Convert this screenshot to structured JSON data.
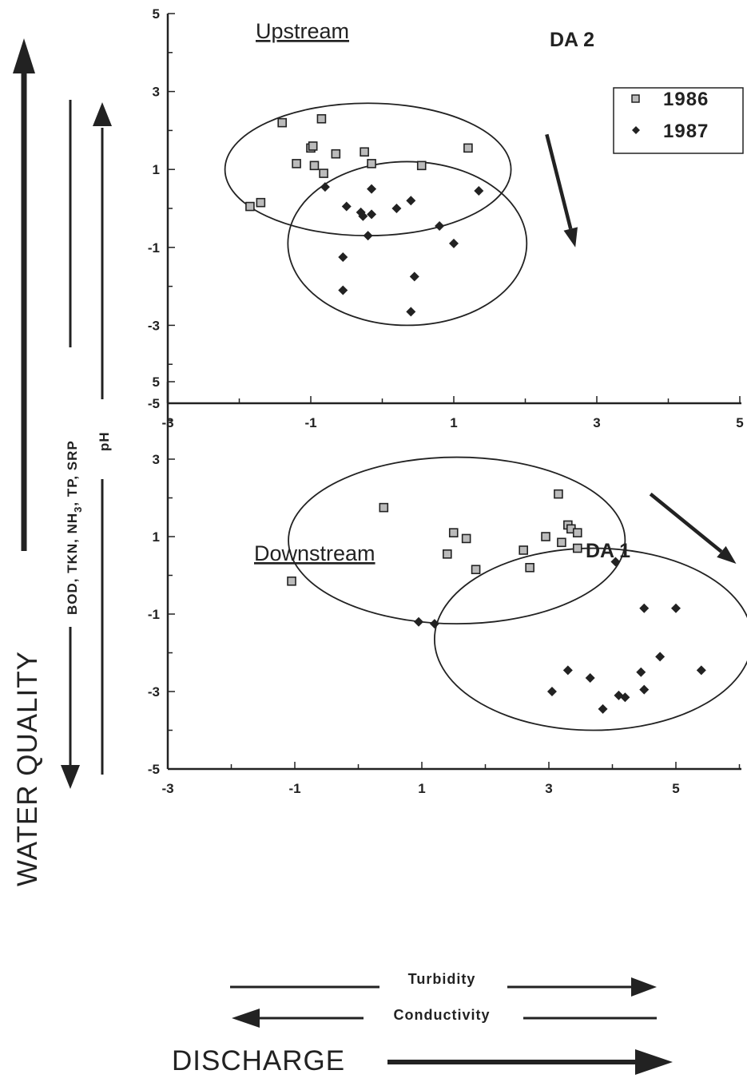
{
  "colors": {
    "ink": "#222222",
    "marker_fill": "#bbbbbb",
    "background": "#ffffff"
  },
  "labels": {
    "water_quality": "WATER QUALITY",
    "down_params": "BOD, TKN, NH",
    "down_params_sub": "3",
    "down_params_tail": ", TP, SRP",
    "up_param": "pH",
    "discharge": "DISCHARGE",
    "turbidity": "Turbidity",
    "conductivity": "Conductivity"
  },
  "legend": {
    "items": [
      {
        "label": "1986",
        "marker": "square"
      },
      {
        "label": "1987",
        "marker": "diamond"
      }
    ]
  },
  "chart_data": [
    {
      "type": "scatter",
      "title": "Upstream",
      "annotation": "DA 2",
      "xlim": [
        -3,
        5
      ],
      "ylim": [
        -5,
        5
      ],
      "xticks": [
        -3,
        -1,
        1,
        3,
        5
      ],
      "yticks": [
        -5,
        -3,
        -1,
        1,
        3,
        5
      ],
      "legend": {
        "position": "top-right"
      },
      "series": [
        {
          "name": "1986",
          "marker": "square",
          "points": [
            [
              -1.85,
              0.05
            ],
            [
              -1.7,
              0.15
            ],
            [
              -1.4,
              2.2
            ],
            [
              -1.2,
              1.15
            ],
            [
              -1.0,
              1.55
            ],
            [
              -0.97,
              1.6
            ],
            [
              -0.95,
              1.1
            ],
            [
              -0.85,
              2.3
            ],
            [
              -0.82,
              0.9
            ],
            [
              -0.65,
              1.4
            ],
            [
              -0.25,
              1.45
            ],
            [
              -0.15,
              1.15
            ],
            [
              0.55,
              1.1
            ],
            [
              1.2,
              1.55
            ]
          ]
        },
        {
          "name": "1987",
          "marker": "diamond",
          "points": [
            [
              -0.8,
              0.55
            ],
            [
              -0.5,
              0.05
            ],
            [
              -0.3,
              -0.1
            ],
            [
              -0.27,
              -0.2
            ],
            [
              -0.2,
              -0.7
            ],
            [
              -0.15,
              -0.15
            ],
            [
              -0.15,
              0.5
            ],
            [
              0.2,
              0.0
            ],
            [
              0.4,
              0.2
            ],
            [
              0.8,
              -0.45
            ],
            [
              1.0,
              -0.9
            ],
            [
              1.35,
              0.45
            ],
            [
              -0.55,
              -1.25
            ],
            [
              -0.55,
              -2.1
            ],
            [
              0.45,
              -1.75
            ],
            [
              0.4,
              -2.65
            ]
          ]
        }
      ],
      "ellipses": [
        {
          "series": "1986",
          "center": [
            -0.2,
            1.0
          ],
          "radii": [
            2.0,
            1.7
          ]
        },
        {
          "series": "1987",
          "center": [
            0.35,
            -0.9
          ],
          "radii": [
            1.67,
            2.1
          ]
        }
      ],
      "arrow": {
        "from": [
          2.3,
          1.9
        ],
        "to": [
          2.7,
          -1.0
        ]
      }
    },
    {
      "type": "scatter",
      "title": "Downstream",
      "annotation": "DA 1",
      "xlim": [
        -3,
        6
      ],
      "ylim": [
        -5,
        5
      ],
      "xticks": [
        -3,
        -1,
        1,
        3,
        5
      ],
      "yticks": [
        -5,
        -3,
        -1,
        1,
        3,
        5
      ],
      "series": [
        {
          "name": "1986",
          "marker": "square",
          "points": [
            [
              -1.05,
              -0.15
            ],
            [
              0.4,
              1.75
            ],
            [
              1.4,
              0.55
            ],
            [
              1.5,
              1.1
            ],
            [
              1.7,
              0.95
            ],
            [
              1.85,
              0.15
            ],
            [
              2.6,
              0.65
            ],
            [
              2.7,
              0.2
            ],
            [
              2.95,
              1.0
            ],
            [
              3.15,
              2.1
            ],
            [
              3.2,
              0.85
            ],
            [
              3.3,
              1.3
            ],
            [
              3.35,
              1.2
            ],
            [
              3.45,
              1.1
            ],
            [
              3.45,
              0.7
            ]
          ]
        },
        {
          "name": "1987",
          "marker": "diamond",
          "points": [
            [
              0.95,
              -1.2
            ],
            [
              1.2,
              -1.25
            ],
            [
              4.05,
              0.35
            ],
            [
              4.5,
              -0.85
            ],
            [
              5.0,
              -0.85
            ],
            [
              4.75,
              -2.1
            ],
            [
              5.4,
              -2.45
            ],
            [
              4.45,
              -2.5
            ],
            [
              4.5,
              -2.95
            ],
            [
              3.3,
              -2.45
            ],
            [
              3.05,
              -3.0
            ],
            [
              3.65,
              -2.65
            ],
            [
              4.1,
              -3.1
            ],
            [
              4.2,
              -3.15
            ],
            [
              3.85,
              -3.45
            ]
          ]
        }
      ],
      "ellipses": [
        {
          "series": "1986",
          "center": [
            1.55,
            0.9
          ],
          "radii": [
            2.65,
            2.15
          ]
        },
        {
          "series": "1987",
          "center": [
            3.7,
            -1.65
          ],
          "radii": [
            2.5,
            2.35
          ]
        }
      ],
      "arrow": {
        "from": [
          4.6,
          2.1
        ],
        "to": [
          5.95,
          0.3
        ]
      }
    }
  ]
}
